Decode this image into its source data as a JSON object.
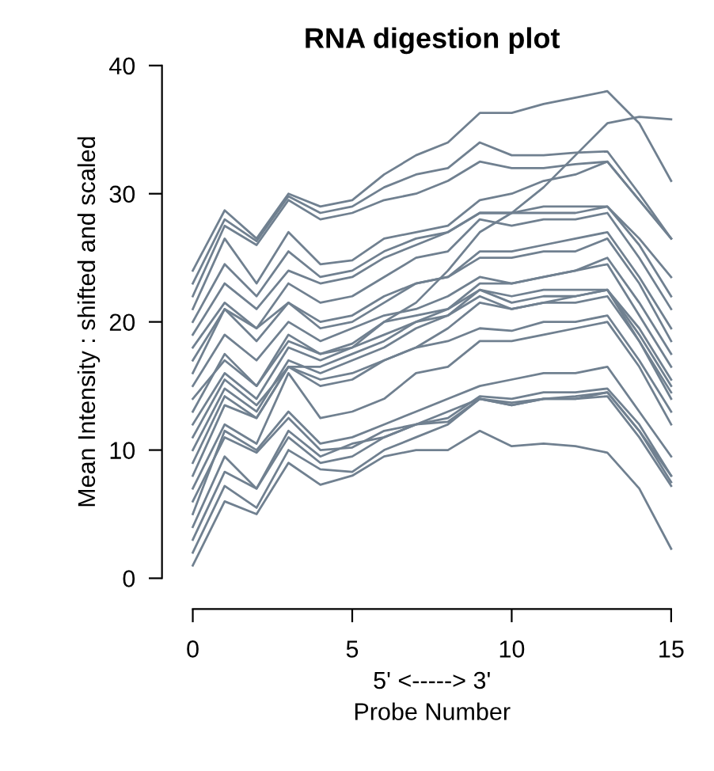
{
  "chart_data": {
    "type": "line",
    "title": "RNA digestion plot",
    "xlabel": "5' <-----> 3'\nProbe Number",
    "ylabel": "Mean Intensity : shifted and scaled",
    "x": [
      0,
      1,
      2,
      3,
      4,
      5,
      6,
      7,
      8,
      9,
      10,
      11,
      12,
      13,
      14,
      15
    ],
    "xlim": [
      0,
      15
    ],
    "xticks": [
      0,
      5,
      10,
      15
    ],
    "ylim": [
      0,
      40
    ],
    "yticks": [
      0,
      10,
      20,
      30,
      40
    ],
    "grid": false,
    "marker": "none",
    "line_style": "solid",
    "series": [
      {
        "color": "#708090",
        "values": [
          1,
          6,
          5,
          9,
          7.3,
          8,
          9.5,
          10,
          10,
          11.5,
          10.3,
          10.5,
          10.3,
          9.8,
          7,
          2.3
        ]
      },
      {
        "color": "#708090",
        "values": [
          2,
          7.2,
          5.5,
          10,
          8.5,
          8.3,
          10,
          11,
          12,
          14,
          13.5,
          14,
          14,
          14.2,
          11,
          7.2
        ]
      },
      {
        "color": "#708090",
        "values": [
          3,
          8.3,
          7,
          11,
          9,
          9.5,
          11,
          12,
          12.2,
          14,
          13.7,
          14,
          14.2,
          14.5,
          11.5,
          7.5
        ]
      },
      {
        "color": "#708090",
        "values": [
          4,
          9.5,
          7,
          11.5,
          9.5,
          10.5,
          11,
          12,
          12.5,
          14.2,
          14,
          14.5,
          14.5,
          14.8,
          12,
          8
        ]
      },
      {
        "color": "#708090",
        "values": [
          5,
          11.5,
          10,
          13,
          10.5,
          11,
          12,
          13,
          14,
          15,
          15.5,
          16,
          16,
          16.5,
          13,
          9.5
        ]
      },
      {
        "color": "#708090",
        "values": [
          6,
          11,
          9.8,
          12.5,
          10,
          10.2,
          11.5,
          12,
          13,
          14,
          13.5,
          14,
          14,
          14.5,
          11.5,
          8
        ]
      },
      {
        "color": "#708090",
        "values": [
          7,
          12,
          10.5,
          16,
          12.5,
          13,
          14,
          16,
          16.5,
          18.5,
          18.5,
          19,
          19.5,
          20,
          16.5,
          12
        ]
      },
      {
        "color": "#708090",
        "values": [
          8,
          13.5,
          12.5,
          16.5,
          15,
          15.5,
          17,
          18,
          18.5,
          19.5,
          19.3,
          20,
          20,
          20.5,
          17,
          13
        ]
      },
      {
        "color": "#708090",
        "values": [
          9,
          14.2,
          12.5,
          16.5,
          15.5,
          16,
          17,
          18,
          19.5,
          21.5,
          21,
          21.5,
          21.5,
          22,
          18.5,
          14
        ]
      },
      {
        "color": "#708090",
        "values": [
          10,
          14.8,
          13,
          17,
          16,
          17,
          18,
          19.5,
          20.5,
          22,
          21,
          21.5,
          22,
          22.5,
          18.5,
          14.5
        ]
      },
      {
        "color": "#708090",
        "values": [
          11,
          15.5,
          13.5,
          16.5,
          16.5,
          17.5,
          18.5,
          20,
          20.5,
          22.5,
          22,
          22.5,
          22.5,
          22.5,
          19,
          15
        ]
      },
      {
        "color": "#708090",
        "values": [
          12,
          16,
          14,
          18,
          17,
          18,
          19,
          20,
          21,
          22.5,
          21.5,
          22,
          22,
          22.5,
          19.5,
          15.5
        ]
      },
      {
        "color": "#708090",
        "values": [
          13,
          17.5,
          15,
          18.5,
          17.5,
          18.3,
          20,
          21.5,
          24,
          27,
          28.5,
          30.5,
          33,
          35.5,
          36,
          35.8
        ]
      },
      {
        "color": "#708090",
        "values": [
          14,
          17,
          15,
          19,
          17.5,
          18,
          20,
          20.5,
          21,
          23,
          23,
          23.5,
          24,
          24.5,
          20.5,
          16.5
        ]
      },
      {
        "color": "#708090",
        "values": [
          15,
          19,
          17,
          20,
          18.5,
          19.5,
          20.5,
          21,
          22,
          23.5,
          23,
          23.5,
          24,
          25,
          21.5,
          17.5
        ]
      },
      {
        "color": "#708090",
        "values": [
          16,
          21,
          18.5,
          21.5,
          19.5,
          20,
          21.5,
          23,
          23.5,
          25,
          25,
          25.5,
          25.5,
          26.5,
          23,
          18.5
        ]
      },
      {
        "color": "#708090",
        "values": [
          17,
          21,
          19.5,
          21.5,
          20,
          20.5,
          22,
          23,
          23.5,
          25.5,
          25.5,
          26,
          26.5,
          27,
          23.5,
          19.5
        ]
      },
      {
        "color": "#708090",
        "values": [
          18,
          21.5,
          19.5,
          23,
          21.5,
          22,
          23.5,
          25,
          25.5,
          28,
          27.5,
          28,
          28,
          28.5,
          25,
          21
        ]
      },
      {
        "color": "#708090",
        "values": [
          19,
          23,
          21,
          24,
          23,
          23.5,
          25,
          26,
          27,
          28.5,
          28.5,
          29,
          29,
          29,
          26,
          22
        ]
      },
      {
        "color": "#708090",
        "values": [
          20,
          24.5,
          22,
          25.5,
          23.5,
          24,
          25.5,
          26.5,
          27,
          28.5,
          28.5,
          28.5,
          28.5,
          29,
          26.5,
          23.5
        ]
      },
      {
        "color": "#708090",
        "values": [
          21,
          26.5,
          23,
          27,
          24.5,
          24.8,
          26.5,
          27,
          27.5,
          29.5,
          30,
          31,
          31.5,
          32.5,
          29.5,
          26.5
        ]
      },
      {
        "color": "#708090",
        "values": [
          22,
          27.5,
          26,
          29.5,
          28,
          28.5,
          29.5,
          30,
          31,
          32.5,
          32,
          32,
          32.3,
          32.5,
          29.5,
          26.5
        ]
      },
      {
        "color": "#708090",
        "values": [
          23,
          28,
          26.3,
          29.8,
          28.5,
          29,
          30.5,
          31.5,
          32,
          34,
          33,
          33,
          33.2,
          33.3,
          30,
          26.5
        ]
      },
      {
        "color": "#708090",
        "values": [
          24,
          28.7,
          26.5,
          30,
          29,
          29.5,
          31.5,
          33,
          34,
          36.3,
          36.3,
          37,
          37.5,
          38,
          35.5,
          31
        ]
      }
    ]
  }
}
